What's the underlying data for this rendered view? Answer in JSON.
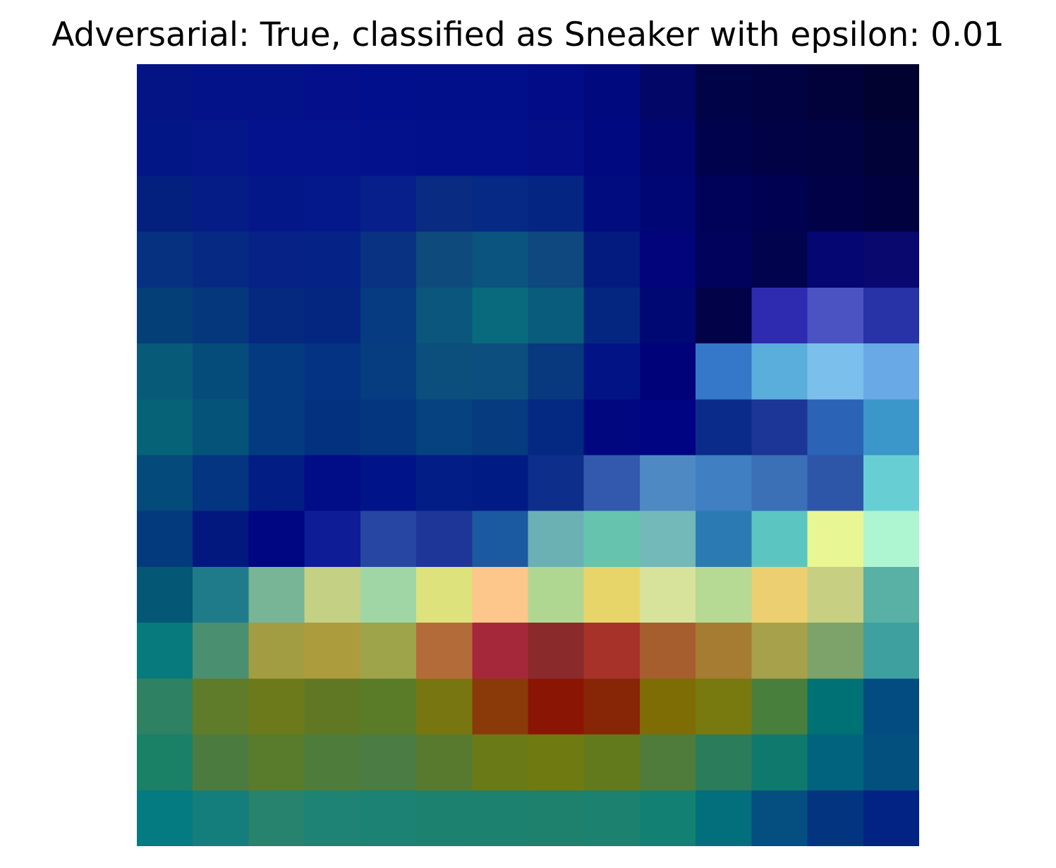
{
  "chart_data": {
    "type": "heatmap",
    "title": "Adversarial: True, classified as Sneaker with epsilon: 0.01",
    "xlabel": "",
    "ylabel": "",
    "axes_visible": false,
    "grid": false,
    "legend": "none",
    "rows": 28,
    "cols": 28,
    "colormap": "jet (overlaid)",
    "row_colors": [
      [
        "#041485",
        "#041485",
        "#04128a",
        "#04128a",
        "#04128a",
        "#04128a",
        "#04108b",
        "#04108b",
        "#020f8d",
        "#020f8d",
        "#020f8a",
        "#020f8a",
        "#020f8a",
        "#020f8a",
        "#020c87",
        "#020c87",
        "#000a7e",
        "#000a7e",
        "#020666",
        "#020666",
        "#010347",
        "#010347",
        "#010242",
        "#010242",
        "#01023a",
        "#01023a",
        "#010230",
        "#010230"
      ],
      [
        "#041485",
        "#041485",
        "#04128a",
        "#04128a",
        "#04128a",
        "#04128a",
        "#04108b",
        "#04108b",
        "#020f8d",
        "#020f8d",
        "#020f8a",
        "#020f8a",
        "#020f8a",
        "#020f8a",
        "#020c87",
        "#020c87",
        "#000a7e",
        "#000a7e",
        "#020666",
        "#020666",
        "#010347",
        "#010347",
        "#010242",
        "#010242",
        "#01023a",
        "#01023a",
        "#010230",
        "#010230"
      ],
      [
        "#031686",
        "#031686",
        "#05158a",
        "#05158a",
        "#04138d",
        "#04138d",
        "#04128d",
        "#04128d",
        "#03118d",
        "#03118d",
        "#03108c",
        "#03108c",
        "#03108b",
        "#03108b",
        "#040e87",
        "#040e87",
        "#010980",
        "#010980",
        "#000570",
        "#000570",
        "#01024c",
        "#01024c",
        "#010246",
        "#010246",
        "#010242",
        "#010242",
        "#010238",
        "#010238"
      ],
      [
        "#031686",
        "#031686",
        "#05158a",
        "#05158a",
        "#04138d",
        "#04138d",
        "#04128d",
        "#04128d",
        "#03118d",
        "#03118d",
        "#03108c",
        "#03108c",
        "#03108b",
        "#03108b",
        "#040e87",
        "#040e87",
        "#010980",
        "#010980",
        "#000570",
        "#000570",
        "#01024c",
        "#01024c",
        "#010246",
        "#010246",
        "#010242",
        "#010242",
        "#010238",
        "#010238"
      ],
      [
        "#03207f",
        "#03207f",
        "#051b85",
        "#051b85",
        "#041789",
        "#041789",
        "#04188b",
        "#04188b",
        "#061f8b",
        "#061f8b",
        "#0a2b82",
        "#0a2b82",
        "#062986",
        "#062986",
        "#052583",
        "#052583",
        "#010c7e",
        "#010c7e",
        "#000674",
        "#000674",
        "#000259",
        "#000259",
        "#010151",
        "#010151",
        "#010148",
        "#010148",
        "#01013f",
        "#01013f"
      ],
      [
        "#03207f",
        "#03207f",
        "#051b85",
        "#051b85",
        "#041789",
        "#041789",
        "#04188b",
        "#04188b",
        "#061f8b",
        "#061f8b",
        "#0a2b82",
        "#0a2b82",
        "#062986",
        "#062986",
        "#052583",
        "#052583",
        "#010c7e",
        "#010c7e",
        "#000674",
        "#000674",
        "#000259",
        "#000259",
        "#010151",
        "#010151",
        "#010148",
        "#010148",
        "#01013f",
        "#01013f"
      ],
      [
        "#063180",
        "#063180",
        "#062a83",
        "#062a83",
        "#062287",
        "#062287",
        "#052387",
        "#052387",
        "#093283",
        "#093283",
        "#0f4a7d",
        "#0f4a7d",
        "#0a547f",
        "#0a547f",
        "#0f477f",
        "#0f477f",
        "#031a7e",
        "#031a7e",
        "#01047a",
        "#01047a",
        "#01025c",
        "#01025c",
        "#01044d",
        "#01044d",
        "#060673",
        "#060673",
        "#09086f",
        "#09086f"
      ],
      [
        "#063180",
        "#063180",
        "#062a83",
        "#062a83",
        "#062287",
        "#062287",
        "#052387",
        "#052387",
        "#093283",
        "#093283",
        "#0f4a7d",
        "#0f4a7d",
        "#0a547f",
        "#0a547f",
        "#0f477f",
        "#0f477f",
        "#031a7e",
        "#031a7e",
        "#01047a",
        "#01047a",
        "#01025c",
        "#01025c",
        "#01044d",
        "#01044d",
        "#060673",
        "#060673",
        "#09086f",
        "#09086f"
      ],
      [
        "#043f78",
        "#043f78",
        "#05377d",
        "#05377d",
        "#04297f",
        "#04297f",
        "#042681",
        "#042681",
        "#063b81",
        "#063b81",
        "#0a567c",
        "#0a567c",
        "#096a7d",
        "#096a7d",
        "#0a5c7c",
        "#0a5c7c",
        "#042680",
        "#042680",
        "#000874",
        "#000874",
        "#010248",
        "#010248",
        "#2e2bb1",
        "#2e2bb1",
        "#4b53c3",
        "#4b53c3",
        "#2733a6",
        "#2733a6"
      ],
      [
        "#043f78",
        "#043f78",
        "#05377d",
        "#05377d",
        "#04297f",
        "#04297f",
        "#042681",
        "#042681",
        "#063b81",
        "#063b81",
        "#0a567c",
        "#0a567c",
        "#096a7d",
        "#096a7d",
        "#0a5c7c",
        "#0a5c7c",
        "#042680",
        "#042680",
        "#000874",
        "#000874",
        "#010248",
        "#010248",
        "#2e2bb1",
        "#2e2bb1",
        "#4b53c3",
        "#4b53c3",
        "#2733a6",
        "#2733a6"
      ],
      [
        "#075b78",
        "#075b78",
        "#064c7a",
        "#064c7a",
        "#043b80",
        "#043b80",
        "#053383",
        "#053383",
        "#063d80",
        "#063d80",
        "#0c4e7c",
        "#0c4e7c",
        "#0c4f7e",
        "#0c4f7e",
        "#08387e",
        "#08387e",
        "#021485",
        "#021485",
        "#00027a",
        "#00027a",
        "#3578c9",
        "#3578c9",
        "#5aaedc",
        "#5aaedc",
        "#7bc0ec",
        "#7bc0ec",
        "#69a9e5",
        "#69a9e5"
      ],
      [
        "#075b78",
        "#075b78",
        "#064c7a",
        "#064c7a",
        "#043b80",
        "#043b80",
        "#053383",
        "#053383",
        "#063d80",
        "#063d80",
        "#0c4e7c",
        "#0c4e7c",
        "#0c4f7e",
        "#0c4f7e",
        "#08387e",
        "#08387e",
        "#021485",
        "#021485",
        "#00027a",
        "#00027a",
        "#3578c9",
        "#3578c9",
        "#5aaedc",
        "#5aaedc",
        "#7bc0ec",
        "#7bc0ec",
        "#69a9e5",
        "#69a9e5"
      ],
      [
        "#066276",
        "#066276",
        "#055378",
        "#055378",
        "#043a7f",
        "#043a7f",
        "#033180",
        "#033180",
        "#04357f",
        "#04357f",
        "#064180",
        "#064180",
        "#063b80",
        "#063b80",
        "#032982",
        "#032982",
        "#01087f",
        "#01087f",
        "#000382",
        "#000382",
        "#0b2b8a",
        "#0b2b8a",
        "#1b3697",
        "#1b3697",
        "#2b63b6",
        "#2b63b6",
        "#3b96ca",
        "#3b96ca"
      ],
      [
        "#066276",
        "#066276",
        "#055378",
        "#055378",
        "#043a7f",
        "#043a7f",
        "#033180",
        "#033180",
        "#04357f",
        "#04357f",
        "#064180",
        "#064180",
        "#063b80",
        "#063b80",
        "#032982",
        "#032982",
        "#01087f",
        "#01087f",
        "#000382",
        "#000382",
        "#0b2b8a",
        "#0b2b8a",
        "#1b3697",
        "#1b3697",
        "#2b63b6",
        "#2b63b6",
        "#3b96ca",
        "#3b96ca"
      ],
      [
        "#044b7b",
        "#044b7b",
        "#043580",
        "#043580",
        "#021d84",
        "#021d84",
        "#010d86",
        "#010d86",
        "#011388",
        "#011388",
        "#021d86",
        "#021d86",
        "#011b84",
        "#011b84",
        "#0d2e8a",
        "#0d2e8a",
        "#3259ad",
        "#3259ad",
        "#4e89c4",
        "#4e89c4",
        "#3f7fc2",
        "#3f7fc2",
        "#3b6fb6",
        "#3b6fb6",
        "#2d56a9",
        "#2d56a9",
        "#67cfd3",
        "#67cfd3"
      ],
      [
        "#044b7b",
        "#044b7b",
        "#043580",
        "#043580",
        "#021d84",
        "#021d84",
        "#010d86",
        "#010d86",
        "#011388",
        "#011388",
        "#021d86",
        "#021d86",
        "#011b84",
        "#011b84",
        "#0d2e8a",
        "#0d2e8a",
        "#3259ad",
        "#3259ad",
        "#4e89c4",
        "#4e89c4",
        "#3f7fc2",
        "#3f7fc2",
        "#3b6fb6",
        "#3b6fb6",
        "#2d56a9",
        "#2d56a9",
        "#67cfd3",
        "#67cfd3"
      ],
      [
        "#033a7e",
        "#033a7e",
        "#02187f",
        "#02187f",
        "#000582",
        "#000582",
        "#0e1c95",
        "#0e1c95",
        "#2746a3",
        "#2746a3",
        "#1d3698",
        "#1d3698",
        "#1b5aa0",
        "#1b5aa0",
        "#6bb1b3",
        "#6bb1b3",
        "#66c3ae",
        "#66c3ae",
        "#73b9ba",
        "#73b9ba",
        "#2b7ab4",
        "#2b7ab4",
        "#5bc5c2",
        "#5bc5c2",
        "#e8f694",
        "#e8f694",
        "#aef5d1",
        "#aef5d1"
      ],
      [
        "#033a7e",
        "#033a7e",
        "#02187f",
        "#02187f",
        "#000582",
        "#000582",
        "#0e1c95",
        "#0e1c95",
        "#2746a3",
        "#2746a3",
        "#1d3698",
        "#1d3698",
        "#1b5aa0",
        "#1b5aa0",
        "#6bb1b3",
        "#6bb1b3",
        "#66c3ae",
        "#66c3ae",
        "#73b9ba",
        "#73b9ba",
        "#2b7ab4",
        "#2b7ab4",
        "#5bc5c2",
        "#5bc5c2",
        "#e8f694",
        "#e8f694",
        "#aef5d1",
        "#aef5d1"
      ],
      [
        "#055776",
        "#055776",
        "#1f7b8a",
        "#1f7b8a",
        "#78b596",
        "#78b596",
        "#c4d184",
        "#c4d184",
        "#a0d6a6",
        "#a0d6a6",
        "#dde27d",
        "#dde27d",
        "#fdc68a",
        "#fdc68a",
        "#b0d791",
        "#b0d791",
        "#e8d56a",
        "#e8d56a",
        "#d7e39a",
        "#d7e39a",
        "#b6d993",
        "#b6d993",
        "#ebcf71",
        "#ebcf71",
        "#c6cf82",
        "#c6cf82",
        "#59b0a5",
        "#59b0a5"
      ],
      [
        "#055776",
        "#055776",
        "#1f7b8a",
        "#1f7b8a",
        "#78b596",
        "#78b596",
        "#c4d184",
        "#c4d184",
        "#a0d6a6",
        "#a0d6a6",
        "#dde27d",
        "#dde27d",
        "#fdc68a",
        "#fdc68a",
        "#b0d791",
        "#b0d791",
        "#e8d56a",
        "#e8d56a",
        "#d7e39a",
        "#d7e39a",
        "#b6d993",
        "#b6d993",
        "#ebcf71",
        "#ebcf71",
        "#c6cf82",
        "#c6cf82",
        "#59b0a5",
        "#59b0a5"
      ],
      [
        "#077a7d",
        "#077a7d",
        "#4a8f70",
        "#4a8f70",
        "#a29d42",
        "#a29d42",
        "#ad9c3e",
        "#ad9c3e",
        "#9ea44a",
        "#9ea44a",
        "#b46b3a",
        "#b46b3a",
        "#a5283a",
        "#a5283a",
        "#8b2a2a",
        "#8b2a2a",
        "#a6322a",
        "#a6322a",
        "#a65e2f",
        "#a65e2f",
        "#a57c32",
        "#a57c32",
        "#a8a14b",
        "#a8a14b",
        "#7da26a",
        "#7da26a",
        "#3fa0a0",
        "#3fa0a0"
      ],
      [
        "#077a7d",
        "#077a7d",
        "#4a8f70",
        "#4a8f70",
        "#a29d42",
        "#a29d42",
        "#ad9c3e",
        "#ad9c3e",
        "#9ea44a",
        "#9ea44a",
        "#b46b3a",
        "#b46b3a",
        "#a5283a",
        "#a5283a",
        "#8b2a2a",
        "#8b2a2a",
        "#a6322a",
        "#a6322a",
        "#a65e2f",
        "#a65e2f",
        "#a57c32",
        "#a57c32",
        "#a8a14b",
        "#a8a14b",
        "#7da26a",
        "#7da26a",
        "#3fa0a0",
        "#3fa0a0"
      ],
      [
        "#2f8163",
        "#2f8163",
        "#5f7c2a",
        "#5f7c2a",
        "#6c7a1c",
        "#6c7a1c",
        "#607823",
        "#607823",
        "#5a7b28",
        "#5a7b28",
        "#787610",
        "#787610",
        "#8a3a09",
        "#8a3a09",
        "#8a1504",
        "#8a1504",
        "#872507",
        "#872507",
        "#7e6c05",
        "#7e6c05",
        "#787a10",
        "#787a10",
        "#487f3c",
        "#487f3c",
        "#007174",
        "#007174",
        "#024c82",
        "#024c82"
      ],
      [
        "#2f8163",
        "#2f8163",
        "#5f7c2a",
        "#5f7c2a",
        "#6c7a1c",
        "#6c7a1c",
        "#607823",
        "#607823",
        "#5a7b28",
        "#5a7b28",
        "#787610",
        "#787610",
        "#8a3a09",
        "#8a3a09",
        "#8a1504",
        "#8a1504",
        "#872507",
        "#872507",
        "#7e6c05",
        "#7e6c05",
        "#787a10",
        "#787a10",
        "#487f3c",
        "#487f3c",
        "#007174",
        "#007174",
        "#024c82",
        "#024c82"
      ],
      [
        "#1a8066",
        "#1a8066",
        "#4c7b40",
        "#4c7b40",
        "#587c2c",
        "#587c2c",
        "#4e7c3b",
        "#4e7c3b",
        "#4a7c43",
        "#4a7c43",
        "#587a2e",
        "#587a2e",
        "#6a7a17",
        "#6a7a17",
        "#6f7a10",
        "#6f7a10",
        "#627a1b",
        "#627a1b",
        "#4f7c3a",
        "#4f7c3a",
        "#2a7c5a",
        "#2a7c5a",
        "#10796e",
        "#10796e",
        "#01637d",
        "#01637d",
        "#03507f",
        "#03507f"
      ],
      [
        "#1a8066",
        "#1a8066",
        "#4c7b40",
        "#4c7b40",
        "#587c2c",
        "#587c2c",
        "#4e7c3b",
        "#4e7c3b",
        "#4a7c43",
        "#4a7c43",
        "#587a2e",
        "#587a2e",
        "#6a7a17",
        "#6a7a17",
        "#6f7a10",
        "#6f7a10",
        "#627a1b",
        "#627a1b",
        "#4f7c3a",
        "#4f7c3a",
        "#2a7c5a",
        "#2a7c5a",
        "#10796e",
        "#10796e",
        "#01637d",
        "#01637d",
        "#03507f",
        "#03507f"
      ],
      [
        "#047a81",
        "#047a81",
        "#137e7b",
        "#137e7b",
        "#27836e",
        "#27836e",
        "#1e8374",
        "#1e8374",
        "#1c8274",
        "#1c8274",
        "#1d8170",
        "#1d8170",
        "#1d816f",
        "#1d816f",
        "#1e816d",
        "#1e816d",
        "#1c816e",
        "#1c816e",
        "#128174",
        "#128174",
        "#036e7c",
        "#036e7c",
        "#044f80",
        "#044f80",
        "#03347f",
        "#03347f",
        "#022284",
        "#022284"
      ],
      [
        "#047a81",
        "#047a81",
        "#137e7b",
        "#137e7b",
        "#27836e",
        "#27836e",
        "#1e8374",
        "#1e8374",
        "#1c8274",
        "#1c8274",
        "#1d8170",
        "#1d8170",
        "#1d816f",
        "#1d816f",
        "#1e816d",
        "#1e816d",
        "#1c816e",
        "#1c816e",
        "#128174",
        "#128174",
        "#036e7c",
        "#036e7c",
        "#044f80",
        "#044f80",
        "#03347f",
        "#03347f",
        "#022284",
        "#022284"
      ]
    ]
  }
}
